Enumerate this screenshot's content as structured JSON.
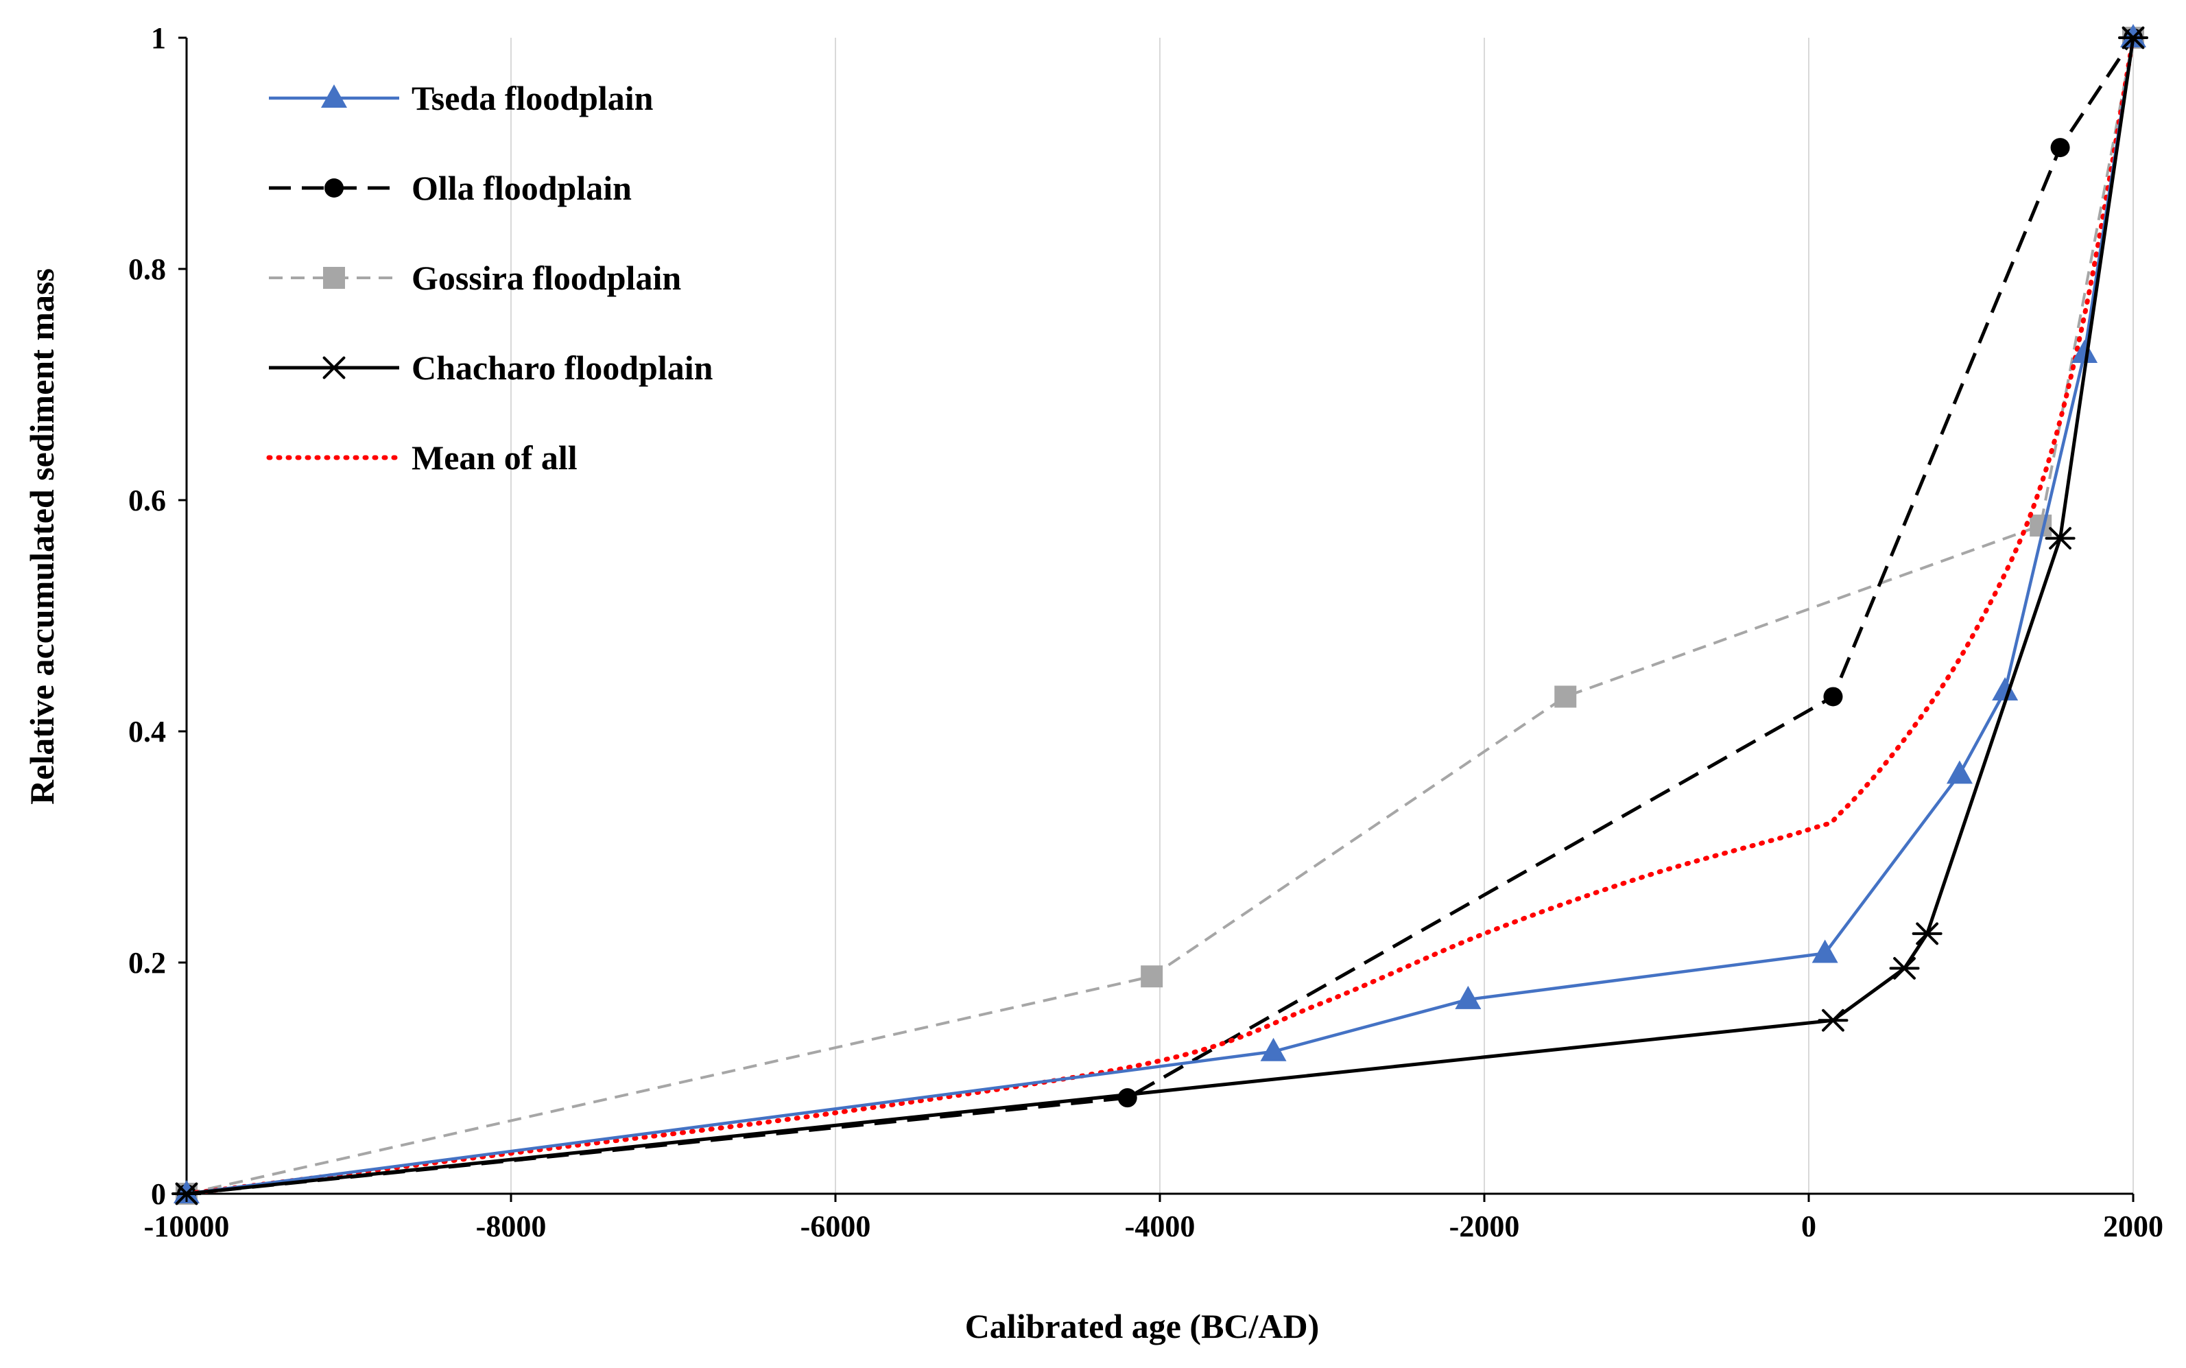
{
  "chart_data": {
    "type": "line",
    "title": "",
    "xlabel": "Calibrated age (BC/AD)",
    "ylabel": "Relative accumulated sediment mass",
    "xlim": [
      -10000,
      2000
    ],
    "ylim": [
      0,
      1
    ],
    "xticks": [
      -10000,
      -8000,
      -6000,
      -4000,
      -2000,
      0,
      2000
    ],
    "xtick_labels": [
      "-10000",
      "-8000",
      "-6000",
      "-4000",
      "-2000",
      "0",
      "2000"
    ],
    "yticks": [
      0,
      0.2,
      0.4,
      0.6,
      0.8,
      1
    ],
    "ytick_labels": [
      "0",
      "0.2",
      "0.4",
      "0.6",
      "0.8",
      "1"
    ],
    "grid": "vertical",
    "legend_position": "top-left",
    "series": [
      {
        "name": "Tseda floodplain",
        "color": "#4472C4",
        "line_style": "solid",
        "marker": "triangle",
        "smooth": false,
        "x": [
          -10000,
          -3300,
          -2100,
          100,
          930,
          1210,
          1700,
          2000
        ],
        "y": [
          0,
          0.123,
          0.168,
          0.208,
          0.363,
          0.435,
          0.727,
          1.0
        ]
      },
      {
        "name": "Olla floodplain",
        "color": "#000000",
        "line_style": "dashed",
        "marker": "circle",
        "smooth": false,
        "x": [
          -10000,
          -4200,
          150,
          1550,
          2000
        ],
        "y": [
          0,
          0.083,
          0.43,
          0.905,
          1.0
        ]
      },
      {
        "name": "Gossira floodplain",
        "color": "#A6A6A6",
        "line_style": "dashed-light",
        "marker": "square",
        "smooth": false,
        "x": [
          -10000,
          -4050,
          -1500,
          1430,
          2000
        ],
        "y": [
          0,
          0.188,
          0.43,
          0.578,
          1.0
        ]
      },
      {
        "name": "Chacharo floodplain",
        "color": "#000000",
        "line_style": "solid",
        "marker": "asterisk",
        "smooth": false,
        "x": [
          -10000,
          150,
          590,
          730,
          1550,
          2000
        ],
        "y": [
          0,
          0.15,
          0.195,
          0.225,
          0.567,
          1.0
        ]
      },
      {
        "name": "Mean of all",
        "color": "#FF0000",
        "line_style": "dotted",
        "marker": "none",
        "smooth": true,
        "x": [
          -10000,
          -8000,
          -6000,
          -4000,
          -3000,
          -2000,
          -1000,
          0,
          200,
          600,
          1000,
          1400,
          1700,
          2000
        ],
        "y": [
          0,
          0.035,
          0.07,
          0.115,
          0.165,
          0.225,
          0.275,
          0.315,
          0.33,
          0.395,
          0.48,
          0.6,
          0.76,
          1.0
        ]
      }
    ]
  }
}
